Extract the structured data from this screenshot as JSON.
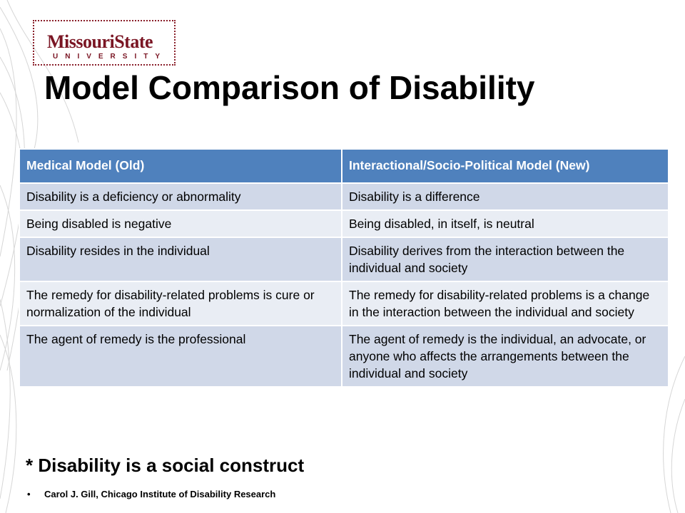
{
  "logo": {
    "main": "MissouriState",
    "sub": "UNIVERSITY"
  },
  "title": "Model Comparison of Disability",
  "table": {
    "headers": [
      "Medical Model (Old)",
      "Interactional/Socio-Political Model (New)"
    ],
    "rows": [
      [
        "Disability is a deficiency or abnormality",
        "Disability is a difference"
      ],
      [
        "Being disabled is negative",
        "Being disabled, in itself, is neutral"
      ],
      [
        "Disability resides in the individual",
        "Disability derives from the interaction between the individual and society"
      ],
      [
        "The remedy for disability-related problems is cure or normalization of the individual",
        "The remedy for disability-related problems is a change in the interaction between the individual and society"
      ],
      [
        "The agent of remedy is the professional",
        "The agent of remedy is the individual, an advocate, or anyone who affects the arrangements between the individual and society"
      ]
    ]
  },
  "note": "* Disability is a social construct",
  "citation": {
    "bullet": "•",
    "text": "Carol J. Gill, Chicago Institute of Disability Research"
  },
  "colors": {
    "header_bg": "#4f81bd",
    "row_odd": "#d0d8e8",
    "row_even": "#e9edf4",
    "logo": "#7a1523"
  }
}
